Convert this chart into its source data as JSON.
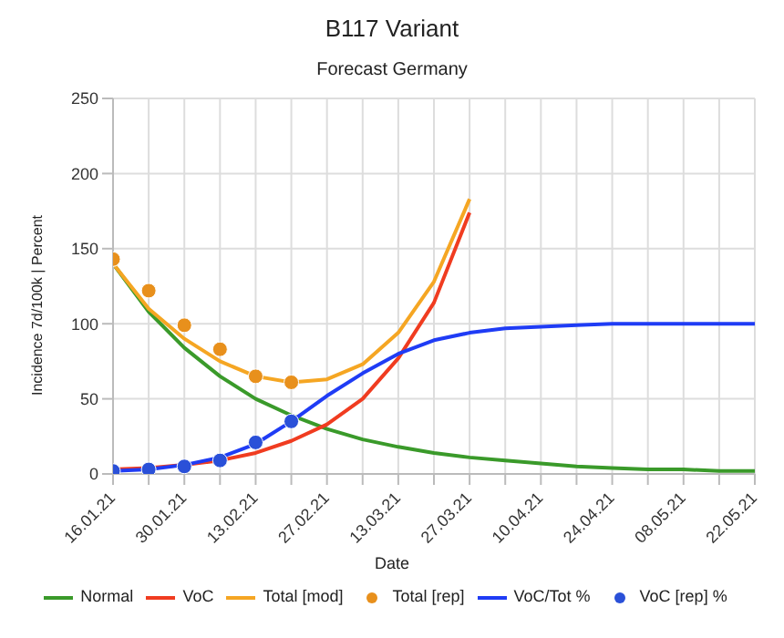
{
  "chart_data": {
    "type": "line",
    "title": "B117 Variant",
    "subtitle": "Forecast Germany",
    "xlabel": "Date",
    "ylabel": "Incidence 7d/100k | Percent",
    "categories": [
      "16.01.21",
      null,
      "30.01.21",
      null,
      "13.02.21",
      null,
      "27.02.21",
      null,
      "13.03.21",
      null,
      "27.03.21",
      null,
      "10.04.21",
      null,
      "24.04.21",
      null,
      "08.05.21",
      null,
      "22.05.21"
    ],
    "series": [
      {
        "name": "Normal",
        "color": "#3a9a2a",
        "values": [
          140,
          108,
          84,
          65,
          50,
          39,
          30,
          23,
          18,
          14,
          11,
          9,
          7,
          5,
          4,
          3,
          3,
          2,
          2
        ]
      },
      {
        "name": "VoC",
        "color": "#f03c20",
        "values": [
          3,
          4,
          6,
          9,
          14,
          22,
          33,
          50,
          77,
          114,
          174,
          null,
          null,
          null,
          null,
          null,
          null,
          null,
          null
        ]
      },
      {
        "name": "Total [mod]",
        "color": "#f5a623",
        "values": [
          140,
          110,
          90,
          75,
          65,
          61,
          63,
          73,
          94,
          128,
          183,
          null,
          null,
          null,
          null,
          null,
          null,
          null,
          null
        ]
      },
      {
        "name": "Total [rep]",
        "type": "scatter",
        "color": "#e8901c",
        "values": [
          143,
          122,
          99,
          83,
          65,
          61,
          null,
          null,
          null,
          null,
          null,
          null,
          null,
          null,
          null,
          null,
          null,
          null,
          null
        ]
      },
      {
        "name": "VoC/Tot %",
        "color": "#1f3cf5",
        "values": [
          2,
          3,
          6,
          11,
          20,
          35,
          52,
          67,
          80,
          89,
          94,
          97,
          98,
          99,
          100,
          100,
          100,
          100,
          100
        ]
      },
      {
        "name": "VoC [rep] %",
        "type": "scatter",
        "color": "#2a50d8",
        "values": [
          2,
          3,
          5,
          9,
          21,
          35,
          null,
          null,
          null,
          null,
          null,
          null,
          null,
          null,
          null,
          null,
          null,
          null,
          null
        ]
      }
    ],
    "ylim": [
      0,
      250
    ],
    "yticks": [
      0,
      50,
      100,
      150,
      200,
      250
    ],
    "grid": true,
    "legend": "bottom"
  }
}
